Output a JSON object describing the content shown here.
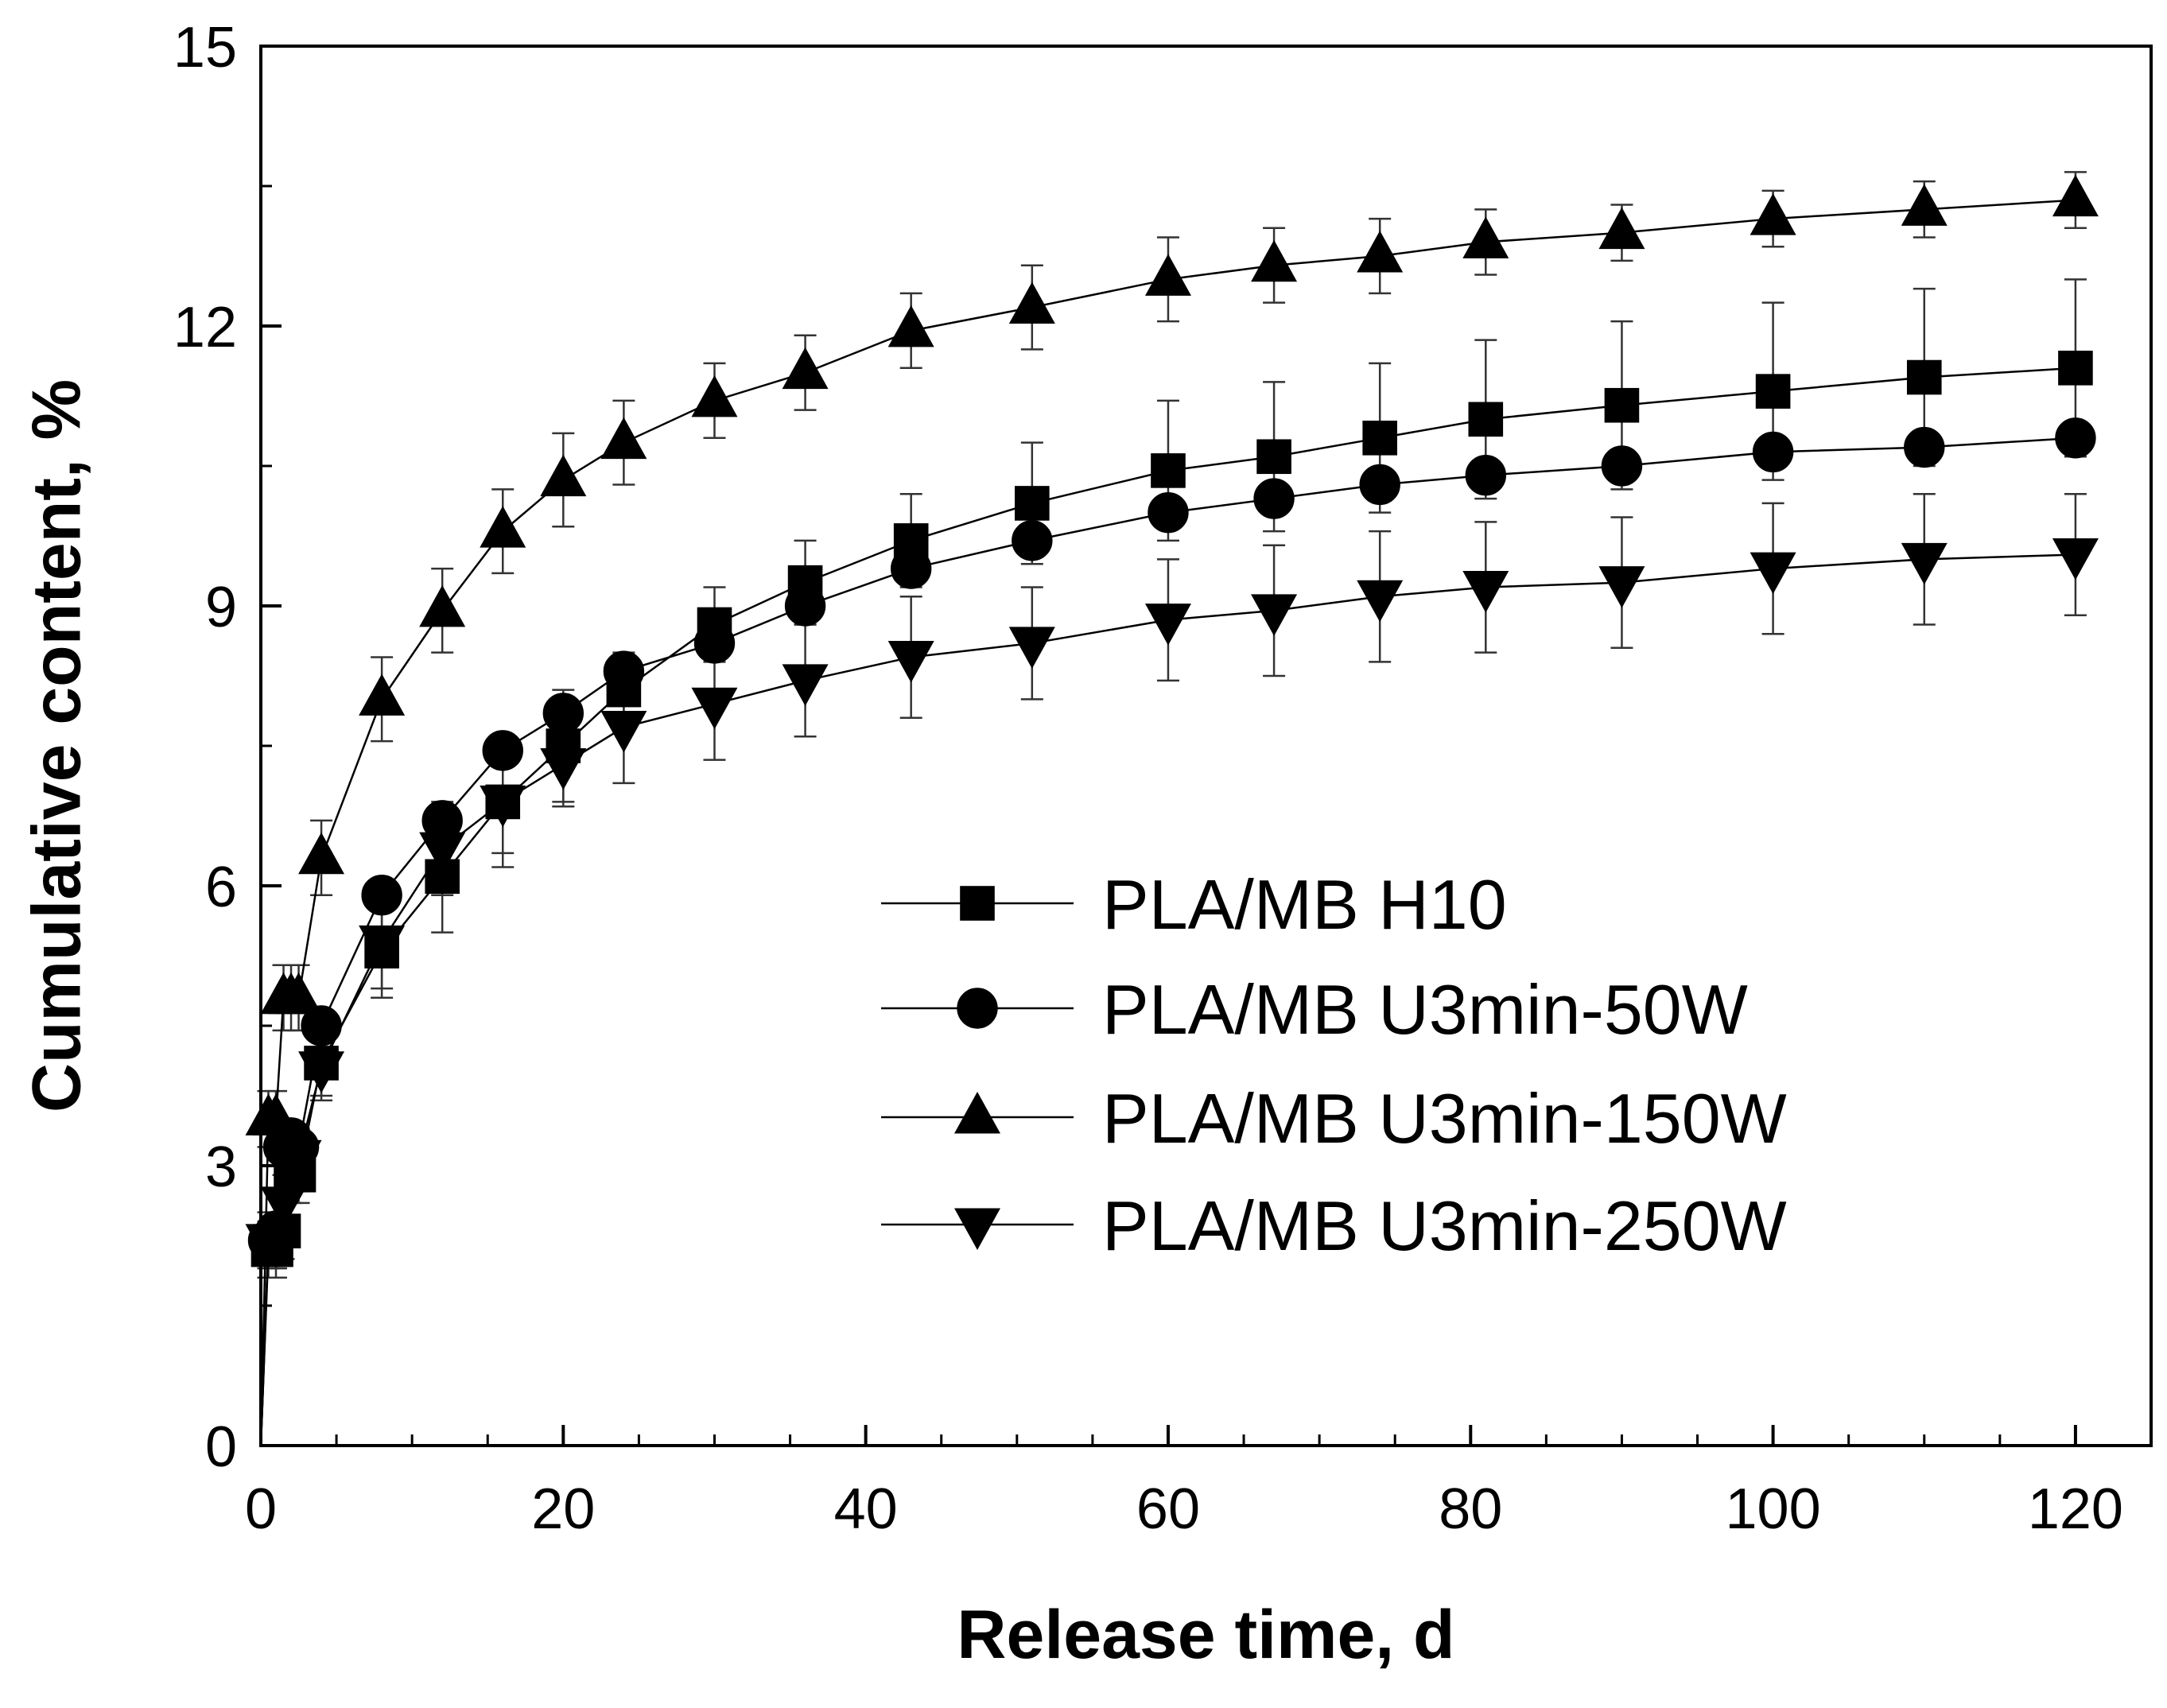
{
  "chart_data": {
    "type": "line",
    "title": "",
    "xlabel": "Release time, d",
    "ylabel": "Cumulative content, %",
    "xlim": [
      0,
      125
    ],
    "ylim": [
      0,
      15
    ],
    "xticks": [
      0,
      20,
      40,
      60,
      80,
      100,
      120
    ],
    "yticks": [
      0,
      3,
      6,
      9,
      12,
      15
    ],
    "x_minor_step": 5,
    "y_minor_step": 1.5,
    "x": [
      0,
      0.5,
      1,
      1.5,
      2,
      2.5,
      4,
      8,
      12,
      16,
      20,
      24,
      30,
      36,
      43,
      51,
      60,
      67,
      74,
      81,
      90,
      100,
      110,
      120
    ],
    "legend_position": "center-right",
    "series": [
      {
        "name": "PLA/MB H10",
        "marker": "square",
        "values": [
          0,
          2.1,
          2.1,
          2.3,
          2.9,
          2.9,
          4.1,
          5.3,
          6.1,
          6.9,
          7.5,
          8.1,
          8.8,
          9.25,
          9.7,
          10.1,
          10.45,
          10.6,
          10.8,
          11.0,
          11.15,
          11.3,
          11.45,
          11.55
        ],
        "errors": [
          0,
          0.3,
          0.3,
          0.3,
          0.3,
          0.3,
          0.35,
          0.5,
          0.6,
          0.7,
          0.6,
          0.4,
          0.4,
          0.45,
          0.5,
          0.65,
          0.75,
          0.8,
          0.8,
          0.85,
          0.9,
          0.95,
          0.95,
          0.95
        ]
      },
      {
        "name": "PLA/MB U3min-50W",
        "marker": "circle",
        "values": [
          0,
          2.2,
          2.3,
          3.2,
          3.3,
          3.2,
          4.5,
          5.9,
          6.7,
          7.45,
          7.85,
          8.3,
          8.6,
          9.0,
          9.4,
          9.7,
          10.0,
          10.15,
          10.3,
          10.4,
          10.5,
          10.65,
          10.7,
          10.8
        ]
      },
      {
        "name": "PLA/MB U3min-150W",
        "marker": "triangle-up",
        "values": [
          0,
          3.5,
          3.5,
          4.8,
          4.8,
          4.8,
          6.3,
          8.0,
          8.95,
          9.8,
          10.35,
          10.75,
          11.2,
          11.5,
          11.95,
          12.2,
          12.5,
          12.65,
          12.75,
          12.9,
          13.0,
          13.15,
          13.25,
          13.35
        ],
        "errors": [
          0,
          0.3,
          0.3,
          0.35,
          0.35,
          0.35,
          0.4,
          0.45,
          0.45,
          0.45,
          0.5,
          0.45,
          0.4,
          0.4,
          0.4,
          0.45,
          0.45,
          0.4,
          0.4,
          0.35,
          0.3,
          0.3,
          0.3,
          0.3
        ]
      },
      {
        "name": "PLA/MB U3min-250W",
        "marker": "triangle-down",
        "values": [
          0,
          2.2,
          2.2,
          2.6,
          3.1,
          3.1,
          4.05,
          5.4,
          6.4,
          6.9,
          7.3,
          7.7,
          7.95,
          8.2,
          8.45,
          8.6,
          8.85,
          8.95,
          9.1,
          9.2,
          9.25,
          9.4,
          9.5,
          9.55
        ],
        "errors": [
          0,
          0.3,
          0.3,
          0.3,
          0.3,
          0.3,
          0.35,
          0.5,
          0.5,
          0.55,
          0.45,
          0.6,
          0.6,
          0.6,
          0.65,
          0.6,
          0.65,
          0.7,
          0.7,
          0.7,
          0.7,
          0.7,
          0.7,
          0.65
        ]
      }
    ]
  }
}
